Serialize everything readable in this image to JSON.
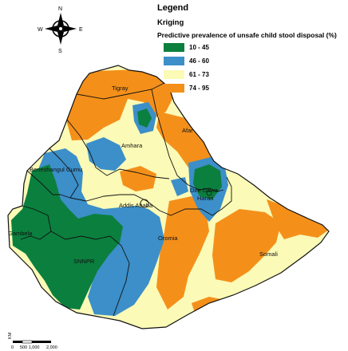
{
  "legend": {
    "title": "Legend",
    "method": "Kriging",
    "heading": "Predictive prevalence of unsafe child stool disposal (%)",
    "items": [
      {
        "label": "10 - 45",
        "color": "#0b7f3e"
      },
      {
        "label": "46 - 60",
        "color": "#3c8fc8"
      },
      {
        "label": "61 - 73",
        "color": "#fbfab6"
      },
      {
        "label": "74 - 95",
        "color": "#f4901a"
      }
    ]
  },
  "compass": {
    "n": "N",
    "s": "S",
    "e": "E",
    "w": "W"
  },
  "regions": {
    "tigray": "Tigray",
    "afar": "Afar",
    "amhara": "Amhara",
    "benishangul": "Beneshangul Gumu",
    "dire_dawa": "Dire Dawa",
    "harari": "Harari",
    "addis": "Addis Ababa",
    "gambela": "Gambela",
    "oromia": "Oromia",
    "snnpr": "SNNPR",
    "somali": "Somali"
  },
  "scale": {
    "unit": "KM",
    "ticks": [
      "0",
      "500 1,000",
      "2,000"
    ]
  }
}
